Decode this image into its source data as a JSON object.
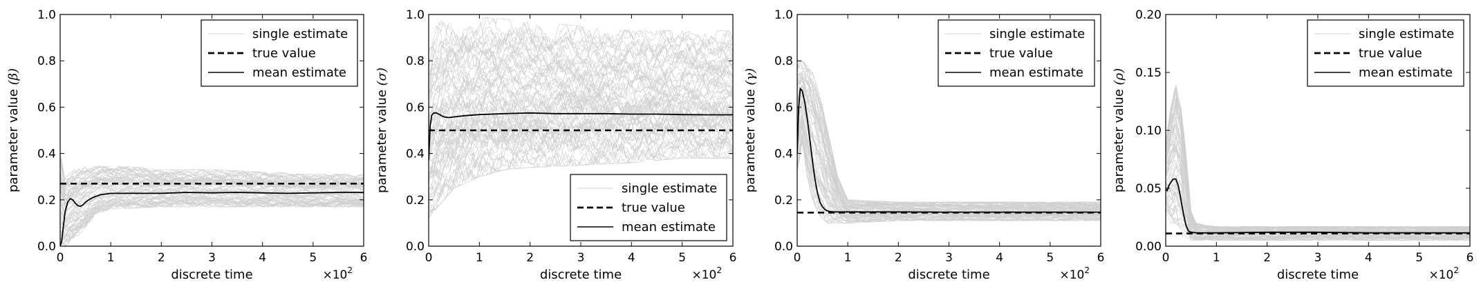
{
  "legend_labels": {
    "single": "single estimate",
    "true": "true value",
    "mean": "mean estimate"
  },
  "colors": {
    "single_estimate": "#cfcfcf",
    "true_value": "#000000",
    "mean_estimate": "#000000"
  },
  "chart_data": [
    {
      "type": "line",
      "panel": "beta",
      "ylabel": "parameter value",
      "ylabel_symbol": "(β)",
      "xlabel": "discrete time",
      "x_multiplier": "×10",
      "x_multiplier_exp": "2",
      "xlim": [
        0,
        6
      ],
      "ylim": [
        0,
        1.0
      ],
      "xticks": [
        0,
        1,
        2,
        3,
        4,
        5,
        6
      ],
      "yticks": [
        "0.0",
        "0.2",
        "0.4",
        "0.6",
        "0.8",
        "1.0"
      ],
      "yticks_values": [
        0,
        0.2,
        0.4,
        0.6,
        0.8,
        1.0
      ],
      "legend_position": "top-right",
      "true_value": 0.27,
      "mean_estimate": {
        "x": [
          0,
          0.03,
          0.06,
          0.1,
          0.15,
          0.2,
          0.25,
          0.3,
          0.35,
          0.4,
          0.45,
          0.5,
          0.6,
          0.7,
          0.8,
          0.9,
          1.0,
          1.5,
          2.0,
          2.5,
          3.0,
          3.5,
          4.0,
          4.5,
          5.0,
          5.5,
          6.0
        ],
        "y": [
          0.0,
          0.02,
          0.08,
          0.15,
          0.19,
          0.205,
          0.2,
          0.185,
          0.175,
          0.172,
          0.178,
          0.19,
          0.205,
          0.215,
          0.222,
          0.225,
          0.228,
          0.228,
          0.228,
          0.232,
          0.23,
          0.232,
          0.23,
          0.228,
          0.23,
          0.232,
          0.232
        ]
      },
      "single_estimate_envelope": {
        "x": [
          0,
          0.1,
          0.2,
          0.3,
          0.5,
          0.7,
          1.0,
          2.0,
          3.0,
          4.0,
          5.0,
          6.0
        ],
        "low": [
          0.0,
          0.0,
          0.02,
          0.03,
          0.08,
          0.13,
          0.16,
          0.17,
          0.17,
          0.17,
          0.17,
          0.17
        ],
        "high": [
          0.42,
          0.3,
          0.32,
          0.33,
          0.34,
          0.35,
          0.35,
          0.33,
          0.33,
          0.32,
          0.31,
          0.31
        ]
      }
    },
    {
      "type": "line",
      "panel": "sigma",
      "ylabel": "parameter value",
      "ylabel_symbol": "(σ)",
      "xlabel": "discrete time",
      "x_multiplier": "×10",
      "x_multiplier_exp": "2",
      "xlim": [
        0,
        6
      ],
      "ylim": [
        0,
        1.0
      ],
      "xticks": [
        0,
        1,
        2,
        3,
        4,
        5,
        6
      ],
      "yticks": [
        "0.0",
        "0.2",
        "0.4",
        "0.6",
        "0.8",
        "1.0"
      ],
      "yticks_values": [
        0,
        0.2,
        0.4,
        0.6,
        0.8,
        1.0
      ],
      "legend_position": "bottom-right",
      "true_value": 0.5,
      "mean_estimate": {
        "x": [
          0,
          0.03,
          0.06,
          0.1,
          0.15,
          0.2,
          0.3,
          0.4,
          0.5,
          0.7,
          1.0,
          1.5,
          2.0,
          2.5,
          3.0,
          3.5,
          4.0,
          4.5,
          5.0,
          5.5,
          6.0
        ],
        "y": [
          0.37,
          0.52,
          0.565,
          0.575,
          0.575,
          0.57,
          0.558,
          0.555,
          0.558,
          0.563,
          0.568,
          0.572,
          0.575,
          0.572,
          0.572,
          0.572,
          0.57,
          0.57,
          0.568,
          0.567,
          0.567
        ]
      },
      "single_estimate_envelope": {
        "x": [
          0,
          0.1,
          0.3,
          0.5,
          1.0,
          1.5,
          2.0,
          3.0,
          4.0,
          5.0,
          6.0
        ],
        "low": [
          0.12,
          0.15,
          0.2,
          0.25,
          0.3,
          0.33,
          0.34,
          0.35,
          0.36,
          0.38,
          0.38
        ],
        "high": [
          0.85,
          0.95,
          0.98,
          0.99,
          0.99,
          0.98,
          0.97,
          0.95,
          0.93,
          0.93,
          0.93
        ]
      }
    },
    {
      "type": "line",
      "panel": "gamma",
      "ylabel": "parameter value",
      "ylabel_symbol": "(γ)",
      "xlabel": "discrete time",
      "x_multiplier": "×10",
      "x_multiplier_exp": "2",
      "xlim": [
        0,
        6
      ],
      "ylim": [
        0,
        1.0
      ],
      "xticks": [
        0,
        1,
        2,
        3,
        4,
        5,
        6
      ],
      "yticks": [
        "0.0",
        "0.2",
        "0.4",
        "0.6",
        "0.8",
        "1.0"
      ],
      "yticks_values": [
        0,
        0.2,
        0.4,
        0.6,
        0.8,
        1.0
      ],
      "legend_position": "top-right",
      "true_value": 0.145,
      "mean_estimate": {
        "x": [
          0,
          0.03,
          0.06,
          0.1,
          0.15,
          0.2,
          0.25,
          0.3,
          0.35,
          0.4,
          0.45,
          0.5,
          0.55,
          0.6,
          0.7,
          0.8,
          1.0,
          1.5,
          2.0,
          3.0,
          4.0,
          5.0,
          6.0
        ],
        "y": [
          0.4,
          0.6,
          0.68,
          0.67,
          0.62,
          0.55,
          0.46,
          0.37,
          0.29,
          0.23,
          0.19,
          0.17,
          0.158,
          0.152,
          0.148,
          0.148,
          0.148,
          0.148,
          0.148,
          0.147,
          0.147,
          0.147,
          0.147
        ]
      },
      "single_estimate_envelope": {
        "x": [
          0,
          0.1,
          0.2,
          0.3,
          0.4,
          0.5,
          0.6,
          0.7,
          0.8,
          1.0,
          2.0,
          3.0,
          4.0,
          5.0,
          6.0
        ],
        "low": [
          0.3,
          0.45,
          0.3,
          0.2,
          0.15,
          0.12,
          0.1,
          0.1,
          0.1,
          0.1,
          0.11,
          0.11,
          0.11,
          0.11,
          0.11
        ],
        "high": [
          0.8,
          0.8,
          0.78,
          0.75,
          0.68,
          0.6,
          0.5,
          0.4,
          0.3,
          0.2,
          0.19,
          0.19,
          0.19,
          0.19,
          0.19
        ]
      }
    },
    {
      "type": "line",
      "panel": "rho",
      "ylabel": "parameter value",
      "ylabel_symbol": "(ρ)",
      "xlabel": "discrete time",
      "x_multiplier": "×10",
      "x_multiplier_exp": "2",
      "xlim": [
        0,
        6
      ],
      "ylim": [
        0,
        0.2
      ],
      "xticks": [
        0,
        1,
        2,
        3,
        4,
        5,
        6
      ],
      "yticks": [
        "0.00",
        "0.05",
        "0.10",
        "0.15",
        "0.20"
      ],
      "yticks_values": [
        0,
        0.05,
        0.1,
        0.15,
        0.2
      ],
      "legend_position": "top-right",
      "true_value": 0.011,
      "mean_estimate": {
        "x": [
          0,
          0.03,
          0.06,
          0.1,
          0.15,
          0.2,
          0.25,
          0.3,
          0.35,
          0.4,
          0.45,
          0.5,
          0.6,
          0.8,
          1.0,
          2.0,
          3.0,
          4.0,
          5.0,
          6.0
        ],
        "y": [
          0.049,
          0.048,
          0.052,
          0.055,
          0.058,
          0.058,
          0.052,
          0.04,
          0.028,
          0.018,
          0.013,
          0.012,
          0.0115,
          0.0115,
          0.0115,
          0.012,
          0.012,
          0.0115,
          0.0115,
          0.0115
        ]
      },
      "single_estimate_envelope": {
        "x": [
          0,
          0.1,
          0.2,
          0.3,
          0.4,
          0.5,
          0.6,
          0.8,
          1.0,
          2.0,
          3.0,
          4.0,
          5.0,
          6.0
        ],
        "low": [
          0.03,
          0.02,
          0.02,
          0.015,
          0.008,
          0.005,
          0.005,
          0.005,
          0.005,
          0.005,
          0.005,
          0.005,
          0.005,
          0.005
        ],
        "high": [
          0.09,
          0.12,
          0.14,
          0.12,
          0.08,
          0.03,
          0.02,
          0.018,
          0.017,
          0.017,
          0.017,
          0.017,
          0.017,
          0.017
        ]
      }
    }
  ]
}
